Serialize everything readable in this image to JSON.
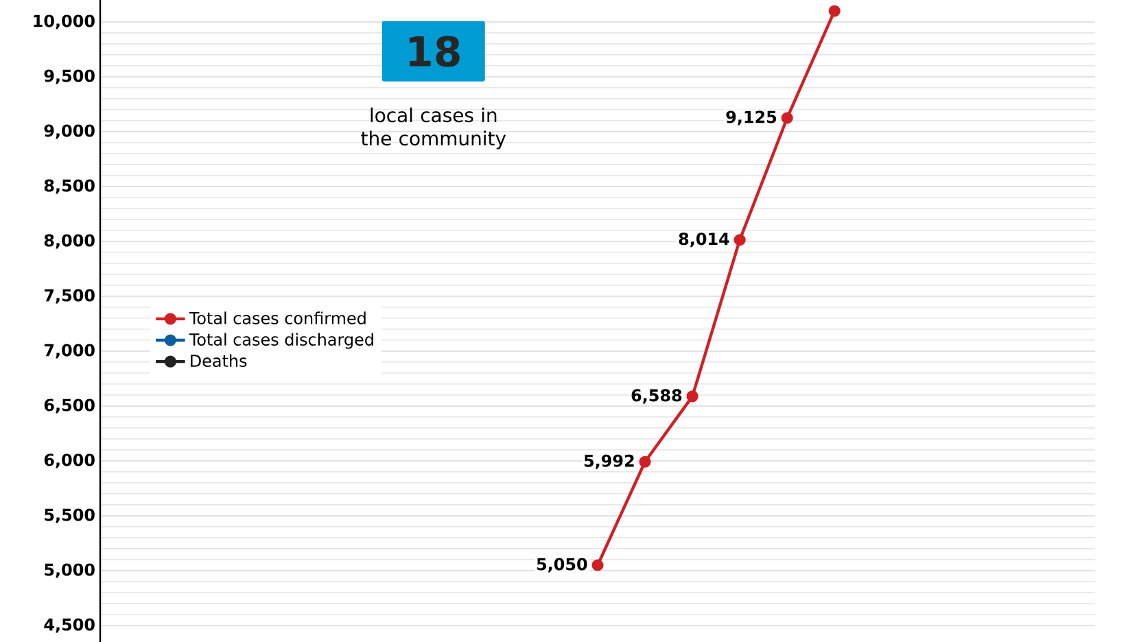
{
  "chart_data": {
    "type": "line",
    "categories": [
      null,
      null,
      null,
      null,
      null,
      null,
      null,
      null,
      null,
      null,
      null,
      null,
      null,
      null,
      null,
      null,
      null,
      null,
      null,
      null,
      null
    ],
    "series": [
      {
        "name": "Total cases confirmed",
        "color": "#d11f26",
        "values": [
          null,
          null,
          null,
          null,
          null,
          null,
          null,
          null,
          null,
          null,
          5050,
          5992,
          6588,
          8014,
          9125,
          10100,
          null,
          null,
          null,
          null,
          null
        ],
        "value_labels": [
          null,
          null,
          null,
          null,
          null,
          null,
          null,
          null,
          null,
          null,
          "5,050",
          "5,992",
          "6,588",
          "8,014",
          "9,125",
          null,
          null,
          null,
          null,
          null,
          null
        ]
      },
      {
        "name": "Total cases discharged",
        "color": "#0a5f9e",
        "values": [
          null,
          null,
          null,
          null,
          null,
          null,
          null,
          null,
          null,
          null,
          null,
          null,
          null,
          null,
          null,
          null,
          null,
          null,
          null,
          null,
          null
        ]
      },
      {
        "name": "Deaths",
        "color": "#222222",
        "values": [
          null,
          null,
          null,
          null,
          null,
          null,
          null,
          null,
          null,
          null,
          null,
          null,
          null,
          null,
          null,
          null,
          null,
          null,
          null,
          null,
          null
        ]
      }
    ],
    "ylim": [
      4350,
      10200
    ],
    "yticks": [
      {
        "value": 4500,
        "label": "4,500"
      },
      {
        "value": 5000,
        "label": "5,000"
      },
      {
        "value": 5500,
        "label": "5,500"
      },
      {
        "value": 6000,
        "label": "6,000"
      },
      {
        "value": 6500,
        "label": "6,500"
      },
      {
        "value": 7000,
        "label": "7,000"
      },
      {
        "value": 7500,
        "label": "7,500"
      },
      {
        "value": 8000,
        "label": "8,000"
      },
      {
        "value": 8500,
        "label": "8,500"
      },
      {
        "value": 9000,
        "label": "9,000"
      },
      {
        "value": 9500,
        "label": "9,500"
      },
      {
        "value": 10000,
        "label": "10,000"
      }
    ],
    "annotations": [
      "18",
      "local cases in the community"
    ],
    "grid": true,
    "legend": "left",
    "marker": "circle",
    "line_style": "solid"
  }
}
